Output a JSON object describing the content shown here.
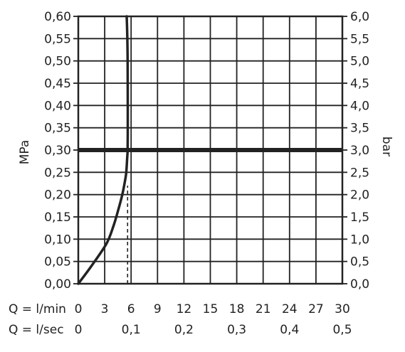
{
  "chart_data": {
    "type": "line",
    "title": "",
    "xlabel_primary": "Q = l/min",
    "xlabel_secondary": "Q = l/sec",
    "ylabel_left": "MPa",
    "ylabel_right": "bar",
    "xlim": [
      0,
      30
    ],
    "ylim": [
      0,
      0.6
    ],
    "grid": true,
    "x_ticks": [
      "0",
      "3",
      "6",
      "9",
      "12",
      "15",
      "18",
      "21",
      "24",
      "27",
      "30"
    ],
    "x_ticks_values": [
      0,
      3,
      6,
      9,
      12,
      15,
      18,
      21,
      24,
      27,
      30
    ],
    "x2_ticks": [
      "0",
      "0,1",
      "0,2",
      "0,3",
      "0,4",
      "0,5"
    ],
    "x2_ticks_values": [
      0,
      6,
      12,
      18,
      24,
      30
    ],
    "y_left_ticks": [
      "0,00",
      "0,05",
      "0,10",
      "0,15",
      "0,20",
      "0,25",
      "0,30",
      "0,35",
      "0,40",
      "0,45",
      "0,50",
      "0,55",
      "0,60"
    ],
    "y_right_ticks": [
      "0,0",
      "0,5",
      "1,0",
      "1,5",
      "2,0",
      "2,5",
      "3,0",
      "3,5",
      "4,0",
      "4,5",
      "5,0",
      "5,5",
      "6,0"
    ],
    "y_ticks_values": [
      0,
      0.05,
      0.1,
      0.15,
      0.2,
      0.25,
      0.3,
      0.35,
      0.4,
      0.45,
      0.5,
      0.55,
      0.6
    ],
    "series": [
      {
        "x": [
          0,
          1.5,
          3.2,
          4.0,
          4.6,
          5.0,
          5.3,
          5.45,
          5.55,
          5.6,
          5.62,
          5.62,
          5.6,
          5.57,
          5.5
        ],
        "y": [
          0,
          0.04,
          0.09,
          0.13,
          0.17,
          0.2,
          0.23,
          0.25,
          0.28,
          0.3,
          0.35,
          0.4,
          0.5,
          0.55,
          0.6
        ]
      }
    ],
    "reference_lines": [
      {
        "axis": "y",
        "value": 0.3,
        "style": "thick"
      },
      {
        "axis": "x",
        "value": 5.6,
        "y_to": 0.22,
        "style": "dashed"
      }
    ]
  }
}
